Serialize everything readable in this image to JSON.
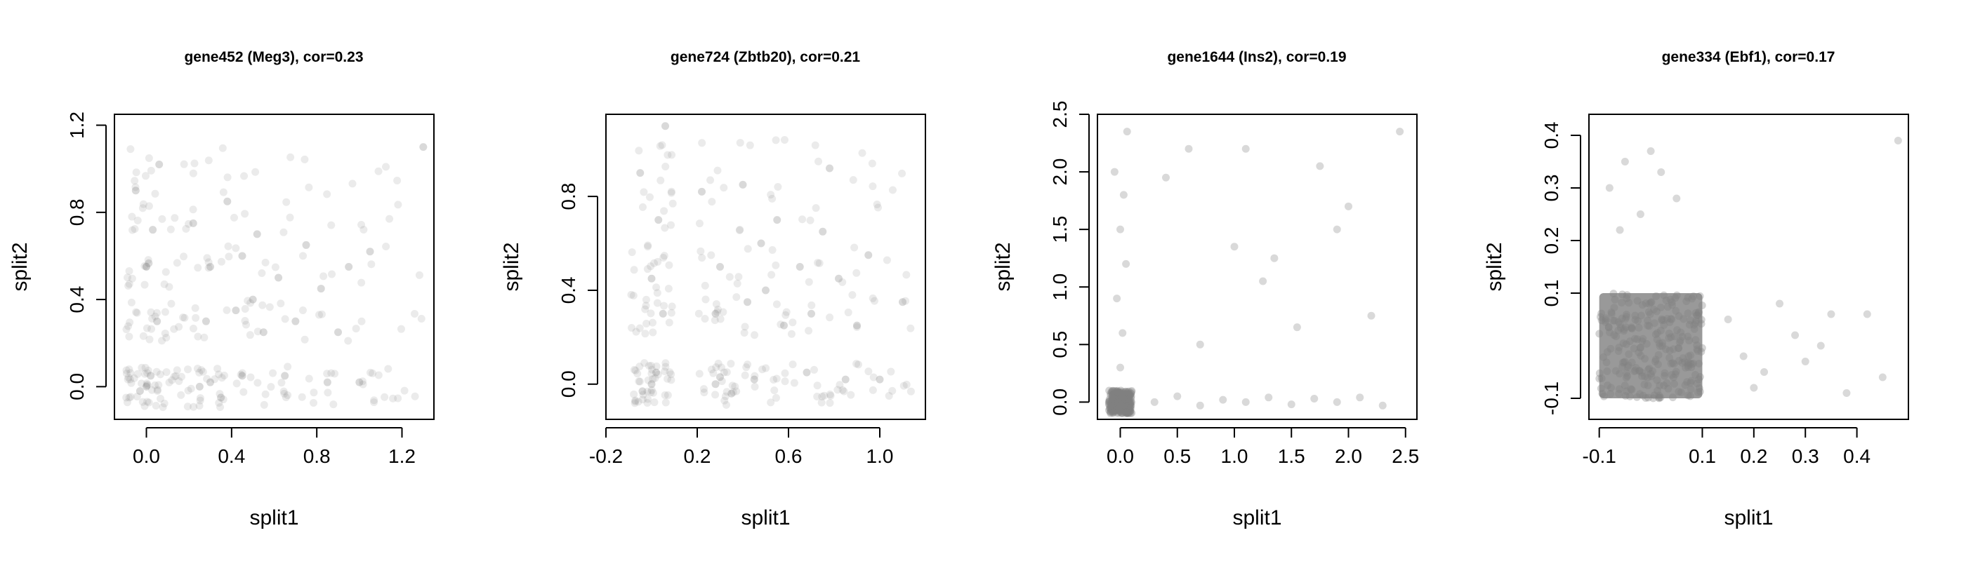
{
  "chart_data": [
    {
      "type": "scatter",
      "title": "gene452 (Meg3), cor=0.23",
      "xlabel": "split1",
      "ylabel": "split2",
      "xlim": [
        -0.15,
        1.35
      ],
      "ylim": [
        -0.15,
        1.25
      ],
      "xticks": [
        "0.0",
        "0.4",
        "0.8",
        "1.2"
      ],
      "yticks": [
        "0.0",
        "0.4",
        "0.8",
        "1.2"
      ],
      "point_color": "#808080",
      "xlevels": [
        0,
        0.2,
        0.4,
        0.6,
        0.8,
        1.0,
        1.2
      ],
      "ylevels": [
        0,
        0.3,
        0.55,
        0.8,
        1.0
      ],
      "points": [
        [
          0.0,
          0.0
        ],
        [
          0.02,
          0.05
        ],
        [
          -0.03,
          -0.02
        ],
        [
          0.05,
          0.3
        ],
        [
          0.0,
          0.55
        ],
        [
          0.03,
          0.72
        ],
        [
          -0.05,
          0.9
        ],
        [
          0.06,
          1.02
        ],
        [
          0.25,
          0.0
        ],
        [
          0.3,
          0.02
        ],
        [
          0.35,
          -0.05
        ],
        [
          0.45,
          0.05
        ],
        [
          0.28,
          0.3
        ],
        [
          0.42,
          0.35
        ],
        [
          0.5,
          0.4
        ],
        [
          0.3,
          0.55
        ],
        [
          0.45,
          0.6
        ],
        [
          0.52,
          0.7
        ],
        [
          0.38,
          0.85
        ],
        [
          0.65,
          0.05
        ],
        [
          0.7,
          0.3
        ],
        [
          0.62,
          0.5
        ],
        [
          0.75,
          0.65
        ],
        [
          0.85,
          0.02
        ],
        [
          0.9,
          0.25
        ],
        [
          0.82,
          0.45
        ],
        [
          1.0,
          0.02
        ],
        [
          0.95,
          0.55
        ],
        [
          1.05,
          0.62
        ],
        [
          1.3,
          1.1
        ],
        [
          0.55,
          0.25
        ],
        [
          0.22,
          0.75
        ]
      ]
    },
    {
      "type": "scatter",
      "title": "gene724 (Zbtb20), cor=0.21",
      "xlabel": "split1",
      "ylabel": "split2",
      "xlim": [
        -0.2,
        1.2
      ],
      "ylim": [
        -0.15,
        1.15
      ],
      "xticks": [
        "-0.2",
        "0.2",
        "0.6",
        "1.0"
      ],
      "yticks": [
        "0.0",
        "0.4",
        "0.8"
      ],
      "point_color": "#808080",
      "xlevels": [
        0,
        0.3,
        0.5,
        0.7,
        0.9,
        1.05
      ],
      "ylevels": [
        0,
        0.3,
        0.5,
        0.75,
        0.95
      ],
      "points": [
        [
          0.0,
          0.0
        ],
        [
          0.02,
          0.05
        ],
        [
          -0.04,
          -0.03
        ],
        [
          0.05,
          0.3
        ],
        [
          0.0,
          0.45
        ],
        [
          0.03,
          0.7
        ],
        [
          -0.05,
          0.9
        ],
        [
          0.06,
          1.1
        ],
        [
          0.28,
          0.0
        ],
        [
          0.3,
          0.03
        ],
        [
          0.35,
          -0.04
        ],
        [
          0.45,
          0.02
        ],
        [
          0.28,
          0.3
        ],
        [
          0.42,
          0.35
        ],
        [
          0.5,
          0.4
        ],
        [
          0.3,
          0.5
        ],
        [
          0.48,
          0.6
        ],
        [
          0.55,
          0.7
        ],
        [
          0.4,
          0.85
        ],
        [
          0.68,
          0.05
        ],
        [
          0.7,
          0.3
        ],
        [
          0.65,
          0.5
        ],
        [
          0.75,
          0.65
        ],
        [
          0.85,
          0.02
        ],
        [
          0.9,
          0.25
        ],
        [
          0.82,
          0.45
        ],
        [
          1.0,
          0.02
        ],
        [
          0.95,
          0.55
        ],
        [
          1.1,
          0.35
        ],
        [
          0.78,
          0.92
        ],
        [
          0.58,
          0.25
        ],
        [
          0.22,
          0.82
        ]
      ]
    },
    {
      "type": "scatter",
      "title": "gene1644 (Ins2), cor=0.19",
      "xlabel": "split1",
      "ylabel": "split2",
      "xlim": [
        -0.2,
        2.6
      ],
      "ylim": [
        -0.15,
        2.5
      ],
      "xticks": [
        "0.0",
        "0.5",
        "1.0",
        "1.5",
        "2.0",
        "2.5"
      ],
      "yticks": [
        "0.0",
        "0.5",
        "1.0",
        "1.5",
        "2.0",
        "2.5"
      ],
      "point_color": "#808080",
      "dense_block": {
        "x": [
          -0.1,
          0.1
        ],
        "y": [
          -0.1,
          0.1
        ]
      },
      "points": [
        [
          0.0,
          0.3
        ],
        [
          0.02,
          0.6
        ],
        [
          -0.03,
          0.9
        ],
        [
          0.05,
          1.2
        ],
        [
          0.0,
          1.5
        ],
        [
          0.03,
          1.8
        ],
        [
          -0.05,
          2.0
        ],
        [
          0.06,
          2.35
        ],
        [
          0.3,
          0.0
        ],
        [
          0.5,
          0.05
        ],
        [
          0.7,
          -0.03
        ],
        [
          0.9,
          0.02
        ],
        [
          1.1,
          0.0
        ],
        [
          1.3,
          0.04
        ],
        [
          1.5,
          -0.02
        ],
        [
          1.7,
          0.03
        ],
        [
          1.9,
          0.0
        ],
        [
          2.1,
          0.04
        ],
        [
          2.3,
          -0.03
        ],
        [
          0.4,
          1.95
        ],
        [
          0.6,
          2.2
        ],
        [
          1.1,
          2.2
        ],
        [
          1.25,
          1.05
        ],
        [
          1.35,
          1.25
        ],
        [
          1.55,
          0.65
        ],
        [
          1.75,
          2.05
        ],
        [
          2.0,
          1.7
        ],
        [
          2.2,
          0.75
        ],
        [
          1.0,
          1.35
        ],
        [
          0.7,
          0.5
        ],
        [
          2.45,
          2.35
        ],
        [
          1.9,
          1.5
        ]
      ]
    },
    {
      "type": "scatter",
      "title": "gene334 (Ebf1), cor=0.17",
      "xlabel": "split1",
      "ylabel": "split2",
      "xlim": [
        -0.12,
        0.5
      ],
      "ylim": [
        -0.14,
        0.44
      ],
      "xticks": [
        "-0.1",
        "0.1",
        "0.2",
        "0.3",
        "0.4"
      ],
      "yticks": [
        "-0.1",
        "0.1",
        "0.2",
        "0.3",
        "0.4"
      ],
      "point_color": "#808080",
      "dense_block": {
        "x": [
          -0.1,
          0.1
        ],
        "y": [
          -0.1,
          0.1
        ]
      },
      "points": [
        [
          -0.08,
          0.3
        ],
        [
          -0.05,
          0.35
        ],
        [
          0.0,
          0.37
        ],
        [
          0.02,
          0.33
        ],
        [
          -0.02,
          0.25
        ],
        [
          0.05,
          0.28
        ],
        [
          -0.06,
          0.22
        ],
        [
          0.15,
          0.05
        ],
        [
          0.18,
          -0.02
        ],
        [
          0.22,
          -0.05
        ],
        [
          0.25,
          0.08
        ],
        [
          0.3,
          -0.03
        ],
        [
          0.35,
          0.06
        ],
        [
          0.42,
          0.06
        ],
        [
          0.45,
          -0.06
        ],
        [
          0.38,
          -0.09
        ],
        [
          0.28,
          0.02
        ],
        [
          0.48,
          0.39
        ],
        [
          0.2,
          -0.08
        ],
        [
          0.33,
          0.0
        ]
      ]
    }
  ]
}
